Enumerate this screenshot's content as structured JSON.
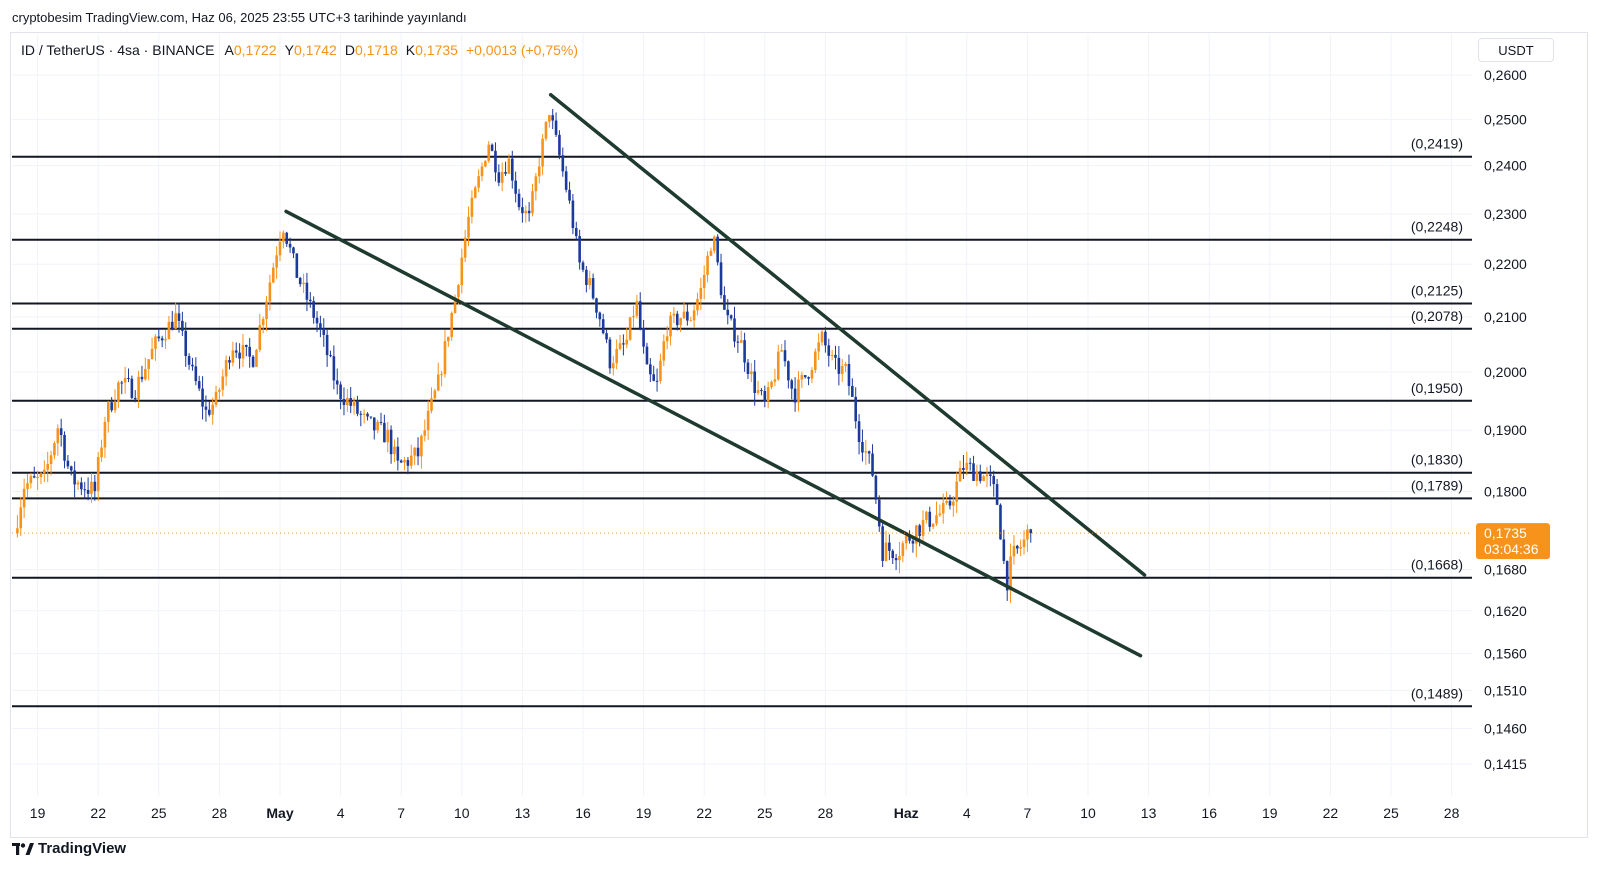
{
  "header": {
    "published_text": "cryptobesim TradingView.com, Haz 06, 2025 23:55 UTC+3 tarihinde yayınlandı"
  },
  "legend": {
    "symbol": "ID / TetherUS · 4sa · BINANCE",
    "open_label": "A",
    "open": "0,1722",
    "high_label": "Y",
    "high": "0,1742",
    "low_label": "D",
    "low": "0,1718",
    "close_label": "K",
    "close": "0,1735",
    "change": "+0,0013 (+0,75%)"
  },
  "currency_button": "USDT",
  "footer": {
    "brand": "TradingView"
  },
  "chart_data": {
    "type": "candlestick",
    "title": "ID / TetherUS · 4sa · BINANCE",
    "ylim": [
      0.1385,
      0.2635
    ],
    "y_scale": "log",
    "grid": true,
    "y_ticks": [
      "0,2600",
      "0,2500",
      "0,2400",
      "0,2300",
      "0,2200",
      "0,2100",
      "0,2000",
      "0,1900",
      "0,1800",
      "0,1680",
      "0,1620",
      "0,1560",
      "0,1510",
      "0,1460",
      "0,1415"
    ],
    "y_tick_values": [
      0.26,
      0.25,
      0.24,
      0.23,
      0.22,
      0.21,
      0.2,
      0.19,
      0.18,
      0.168,
      0.162,
      0.156,
      0.151,
      0.146,
      0.1415
    ],
    "x_ticks": [
      {
        "label": "19",
        "day": -12
      },
      {
        "label": "22",
        "day": -9
      },
      {
        "label": "25",
        "day": -6
      },
      {
        "label": "28",
        "day": -3
      },
      {
        "label": "May",
        "day": 0,
        "bold": true
      },
      {
        "label": "4",
        "day": 3
      },
      {
        "label": "7",
        "day": 6
      },
      {
        "label": "10",
        "day": 9
      },
      {
        "label": "13",
        "day": 12
      },
      {
        "label": "16",
        "day": 15
      },
      {
        "label": "19",
        "day": 18
      },
      {
        "label": "22",
        "day": 21
      },
      {
        "label": "25",
        "day": 24
      },
      {
        "label": "28",
        "day": 27
      },
      {
        "label": "Haz",
        "day": 31,
        "bold": true
      },
      {
        "label": "4",
        "day": 34
      },
      {
        "label": "7",
        "day": 37
      },
      {
        "label": "10",
        "day": 40
      },
      {
        "label": "13",
        "day": 43
      },
      {
        "label": "16",
        "day": 46
      },
      {
        "label": "19",
        "day": 49
      },
      {
        "label": "22",
        "day": 52
      },
      {
        "label": "25",
        "day": 55
      },
      {
        "label": "28",
        "day": 58
      }
    ],
    "horizontal_levels": [
      {
        "value": 0.2419,
        "label": "(0,2419)"
      },
      {
        "value": 0.2248,
        "label": "(0,2248)"
      },
      {
        "value": 0.2125,
        "label": "(0,2125)"
      },
      {
        "value": 0.2078,
        "label": "(0,2078)"
      },
      {
        "value": 0.195,
        "label": "(0,1950)"
      },
      {
        "value": 0.183,
        "label": "(0,1830)"
      },
      {
        "value": 0.1789,
        "label": "(0,1789)"
      },
      {
        "value": 0.1668,
        "label": "(0,1668)"
      },
      {
        "value": 0.1489,
        "label": "(0,1489)"
      }
    ],
    "trendlines": [
      {
        "name": "upper",
        "from": {
          "day": 13.4,
          "price": 0.2555
        },
        "to": {
          "day": 42.8,
          "price": 0.1672
        }
      },
      {
        "name": "lower",
        "from": {
          "day": 0.3,
          "price": 0.2305
        },
        "to": {
          "day": 42.6,
          "price": 0.1557
        }
      }
    ],
    "last_price": {
      "value": 0.1735,
      "label": "0,1735",
      "countdown": "03:04:36"
    },
    "start_day": -13,
    "end_day": 37.2,
    "path_keypoints": [
      [
        -13,
        0.1735
      ],
      [
        -12.5,
        0.181
      ],
      [
        -11.5,
        0.182
      ],
      [
        -10.8,
        0.191
      ],
      [
        -10.2,
        0.182
      ],
      [
        -9,
        0.18
      ],
      [
        -8.5,
        0.192
      ],
      [
        -7.8,
        0.198
      ],
      [
        -7,
        0.197
      ],
      [
        -6,
        0.205
      ],
      [
        -5,
        0.21
      ],
      [
        -4.2,
        0.2
      ],
      [
        -3.5,
        0.193
      ],
      [
        -3,
        0.195
      ],
      [
        -2.2,
        0.205
      ],
      [
        -1.2,
        0.202
      ],
      [
        -0.6,
        0.212
      ],
      [
        0.3,
        0.228
      ],
      [
        1,
        0.218
      ],
      [
        2.2,
        0.207
      ],
      [
        3,
        0.197
      ],
      [
        4.5,
        0.191
      ],
      [
        5.5,
        0.189
      ],
      [
        6,
        0.184
      ],
      [
        7,
        0.186
      ],
      [
        8,
        0.198
      ],
      [
        8.8,
        0.213
      ],
      [
        9.5,
        0.229
      ],
      [
        10.5,
        0.245
      ],
      [
        11,
        0.238
      ],
      [
        11.5,
        0.241
      ],
      [
        12,
        0.232
      ],
      [
        12.5,
        0.229
      ],
      [
        13,
        0.241
      ],
      [
        13.5,
        0.252
      ],
      [
        14,
        0.242
      ],
      [
        14.5,
        0.232
      ],
      [
        15,
        0.22
      ],
      [
        15.5,
        0.216
      ],
      [
        16,
        0.21
      ],
      [
        16.5,
        0.202
      ],
      [
        17.3,
        0.205
      ],
      [
        17.8,
        0.213
      ],
      [
        18.3,
        0.2
      ],
      [
        18.8,
        0.197
      ],
      [
        19.3,
        0.208
      ],
      [
        20,
        0.21
      ],
      [
        20.5,
        0.21
      ],
      [
        21,
        0.215
      ],
      [
        21.6,
        0.226
      ],
      [
        22.2,
        0.21
      ],
      [
        23,
        0.205
      ],
      [
        23.6,
        0.198
      ],
      [
        24.2,
        0.194
      ],
      [
        25,
        0.204
      ],
      [
        25.6,
        0.196
      ],
      [
        26.3,
        0.2
      ],
      [
        27,
        0.206
      ],
      [
        27.6,
        0.201
      ],
      [
        28.2,
        0.2
      ],
      [
        28.8,
        0.19
      ],
      [
        29.5,
        0.183
      ],
      [
        30,
        0.171
      ],
      [
        30.8,
        0.171
      ],
      [
        31.6,
        0.174
      ],
      [
        32.5,
        0.176
      ],
      [
        33.2,
        0.177
      ],
      [
        34,
        0.184
      ],
      [
        34.8,
        0.183
      ],
      [
        35.4,
        0.181
      ],
      [
        35.7,
        0.178
      ],
      [
        36.1,
        0.166
      ],
      [
        36.5,
        0.17
      ],
      [
        37,
        0.1722
      ],
      [
        37.2,
        0.1735
      ]
    ],
    "candle_colors": {
      "up": "#f7931a",
      "down": "#1b3a9c"
    }
  },
  "colors": {
    "level_line": "#131722",
    "trendline": "#1f3a2e",
    "grid": "#f0f3fa",
    "price_tag": "#f7931a"
  }
}
